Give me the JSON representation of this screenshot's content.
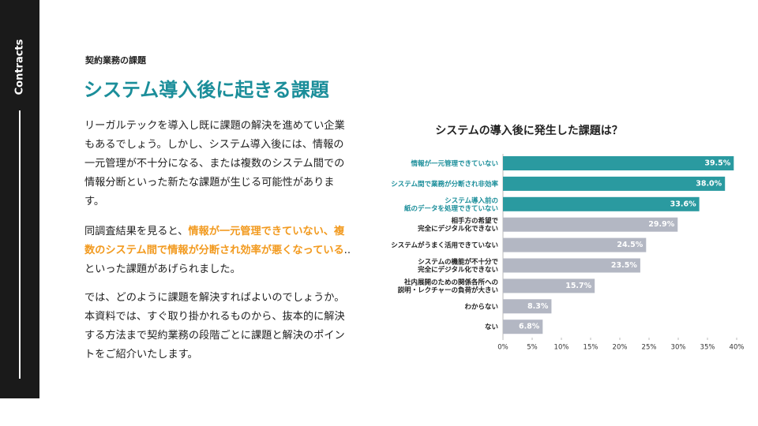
{
  "sidebar": {
    "brand": "Contracts"
  },
  "header": {
    "label": "契約業務の課題",
    "title": "システム導入後に起きる課題"
  },
  "body": {
    "paragraph1": "リーガルテックを導入し既に課題の解決を進めてい企業もあるでしょう。しかし、システム導入後には、情報の一元管理が不十分になる、または複数のシステム間での情報分断といった新たな課題が生じる可能性があります。",
    "paragraph2": {
      "before": "同調査結果を見ると、",
      "highlight": "情報が一元管理できていない、複数のシステム間で情報が分断され効率が悪くなっている",
      "after": "..といった課題があげられました。"
    },
    "paragraph3": "では、どのように課題を解決すればよいのでしょうか。本資料では、すぐ取り掛かれるものから、抜本的に解決する方法まで契約業務の段階ごとに課題と解決のポイントをご紹介いたします。"
  },
  "chart_data": {
    "type": "hbar",
    "title": "システムの導入後に発生した課題は？",
    "categories": [
      "情報が一元管理できていない",
      "システム間で業務が分断され非効率",
      "システム導入前の\n紙のデータを処理できていない",
      "相手方の希望で\n完全にデジタル化できない",
      "システムがうまく活用できていない",
      "システムの機能が不十分で\n完全にデジタル化できない",
      "社内展開のための関係各所への\n説明・レクチャーの負荷が大きい",
      "わからない",
      "ない"
    ],
    "values": [
      39.5,
      38.0,
      33.6,
      29.9,
      24.5,
      23.5,
      15.7,
      8.3,
      6.8
    ],
    "value_labels": [
      "39.5%",
      "38.0%",
      "33.6%",
      "29.9%",
      "24.5%",
      "23.5%",
      "15.7%",
      "8.3%",
      "6.8%"
    ],
    "colors": [
      "#2a9aa0",
      "#2a9aa0",
      "#2a9aa0",
      "#b3b7c3",
      "#b3b7c3",
      "#b3b7c3",
      "#b3b7c3",
      "#b3b7c3",
      "#b3b7c3"
    ],
    "xlim": [
      0,
      40
    ],
    "xticks": [
      {
        "value": 0,
        "label": "0%"
      },
      {
        "value": 5,
        "label": "5%"
      },
      {
        "value": 10,
        "label": "10%"
      },
      {
        "value": 15,
        "label": "15%"
      },
      {
        "value": 20,
        "label": "20%"
      },
      {
        "value": 25,
        "label": "25%"
      },
      {
        "value": 30,
        "label": "30%"
      },
      {
        "value": 35,
        "label": "35%"
      },
      {
        "value": 40,
        "label": "40%"
      }
    ]
  }
}
